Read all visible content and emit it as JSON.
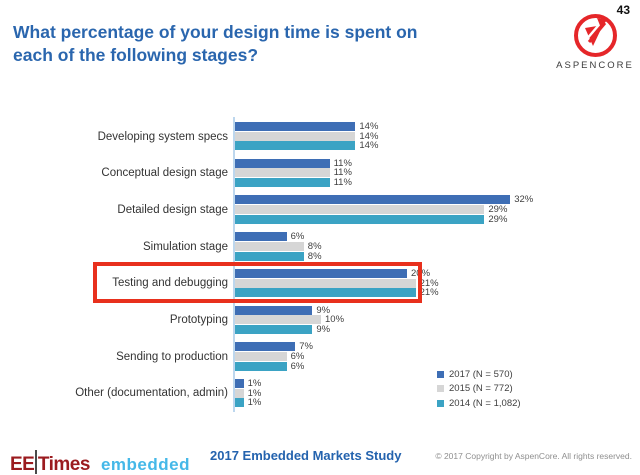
{
  "page_number": "43",
  "title": {
    "line1": "What percentage of your design time is spent on",
    "line2": "each of the following stages?"
  },
  "logo": {
    "brand": "ASPENCORE",
    "color": "#E52629"
  },
  "chart_data": {
    "type": "bar",
    "orientation": "horizontal",
    "title": "",
    "xlabel": "",
    "ylabel": "",
    "xlim": [
      0,
      35
    ],
    "grid": false,
    "legend_position": "bottom-right",
    "value_suffix": "%",
    "categories": [
      "Developing system specs",
      "Conceptual design stage",
      "Detailed design stage",
      "Simulation stage",
      "Testing and debugging",
      "Prototyping",
      "Sending to production",
      "Other (documentation, admin)"
    ],
    "series": [
      {
        "name": "2017 (N = 570)",
        "color": "#3E6EB5",
        "values": [
          14,
          11,
          32,
          6,
          20,
          9,
          7,
          1
        ]
      },
      {
        "name": "2015 (N = 772)",
        "color": "#D6D6D6",
        "values": [
          14,
          11,
          29,
          8,
          21,
          10,
          6,
          1
        ]
      },
      {
        "name": "2014 (N = 1,082)",
        "color": "#3BA3C4",
        "values": [
          14,
          11,
          29,
          8,
          21,
          9,
          6,
          1
        ]
      }
    ],
    "highlighted_category": "Testing and debugging",
    "highlight_color": "#E8301D"
  },
  "footer": {
    "eetimes_ee": "EE",
    "eetimes_times": "Times",
    "embedded": "embedded",
    "study_title": "2017 Embedded Markets Study",
    "copyright": "© 2017 Copyright by AspenCore. All rights reserved."
  }
}
